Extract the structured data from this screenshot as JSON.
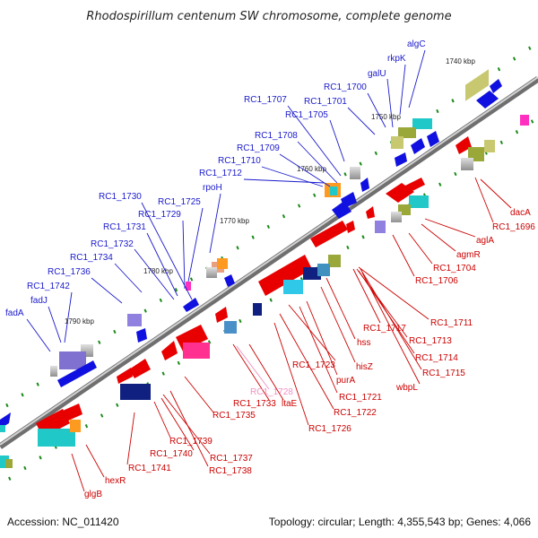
{
  "title": "Rhodospirillum centenum SW chromosome, complete genome",
  "footer": {
    "accession": "Accession: NC_011420",
    "summary": "Topology: circular; Length: 4,355,543 bp; Genes: 4,066"
  },
  "colors": {
    "backbone": "#8c8c8c",
    "plus_strand_arrow": "#1010e0",
    "minus_strand_arrow": "#e80000",
    "plus_label": "#1a1acc",
    "minus_label": "#cc0000",
    "rna_label": "#f090c0",
    "tick": "#1a8a1a"
  },
  "scale_labels": [
    "1740 kbp",
    "1750 kbp",
    "1760 kbp",
    "1770 kbp",
    "1780 kbp",
    "1790 kbp"
  ],
  "plus_strand_labels": [
    "algC",
    "rkpK",
    "galU",
    "RC1_1700",
    "RC1_1701",
    "RC1_1705",
    "RC1_1707",
    "RC1_1708",
    "RC1_1709",
    "RC1_1710",
    "RC1_1712",
    "rpoH",
    "RC1_1725",
    "RC1_1729",
    "RC1_1730",
    "RC1_1731",
    "RC1_1732",
    "RC1_1734",
    "RC1_1736",
    "RC1_1742",
    "fadJ",
    "fadA"
  ],
  "minus_strand_labels": [
    "dacA",
    "RC1_1696",
    "aglA",
    "agmR",
    "RC1_1704",
    "RC1_1706",
    "RC1_1711",
    "RC1_1717",
    "RC1_1713",
    "hss",
    "RC1_1714",
    "RC1_1715",
    "hisZ",
    "wbpL",
    "RC1_1723",
    "purA",
    "RC1_1721",
    "RC1_1722",
    "RC1_1726",
    "RC1_1728",
    "RC1_1733",
    "ltaE",
    "RC1_1735",
    "RC1_1739",
    "RC1_1740",
    "RC1_1737",
    "RC1_1738",
    "RC1_1741",
    "hexR",
    "glgB"
  ]
}
